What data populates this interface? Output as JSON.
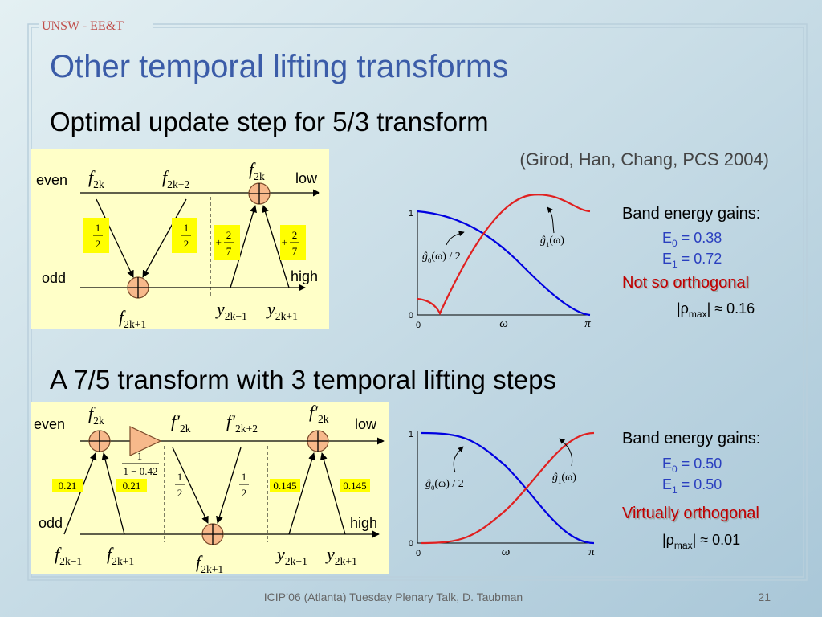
{
  "header": {
    "org": "UNSW - EE&T",
    "title": "Other temporal lifting transforms"
  },
  "sections": [
    {
      "heading": "Optimal update step for 5/3 transform",
      "citation": "(Girod, Han, Chang, PCS 2004)",
      "diagram": {
        "ports": [
          "even",
          "odd",
          "low",
          "high"
        ],
        "signals": [
          {
            "base": "f",
            "sub": "2k"
          },
          {
            "base": "f",
            "sub": "2k+2"
          },
          {
            "base": "f",
            "sub": "2k"
          },
          {
            "base": "f",
            "sub": "2k+1"
          },
          {
            "base": "y",
            "sub": "2k−1"
          },
          {
            "base": "y",
            "sub": "2k+1"
          }
        ],
        "weights": [
          {
            "sign": "−",
            "num": "1",
            "den": "2"
          },
          {
            "sign": "−",
            "num": "1",
            "den": "2"
          },
          {
            "sign": "+",
            "num": "2",
            "den": "7"
          },
          {
            "sign": "+",
            "num": "2",
            "den": "7"
          }
        ]
      },
      "plot": {
        "y_ticks": [
          "1",
          "0"
        ],
        "x_ticks": [
          "0",
          "π"
        ],
        "x_label": "ω",
        "curves": [
          {
            "base": "ĝ",
            "sub": "0",
            "post": "(ω) / 2"
          },
          {
            "base": "ĝ",
            "sub": "1",
            "post": "(ω)"
          }
        ]
      },
      "gains": {
        "title": "Band energy gains:",
        "bands": [
          {
            "symbol": "E",
            "sub": "0",
            "value": " = 0.38"
          },
          {
            "symbol": "E",
            "sub": "1",
            "value": " = 0.72"
          }
        ],
        "verdict": "Not so orthogonal",
        "rho": {
          "pre": "|ρ",
          "sub": "max",
          "post": "| ≈ 0.16"
        }
      }
    },
    {
      "heading": "A 7/5 transform with 3 temporal lifting steps",
      "diagram": {
        "ports": [
          "even",
          "odd",
          "low",
          "high"
        ],
        "signals": [
          {
            "base": "f",
            "sub": "2k"
          },
          {
            "base": "f′",
            "sub": "2k"
          },
          {
            "base": "f′",
            "sub": "2k+2"
          },
          {
            "base": "f′",
            "sub": "2k"
          },
          {
            "base": "f",
            "sub": "2k−1"
          },
          {
            "base": "f",
            "sub": "2k+1"
          },
          {
            "base": "f",
            "sub": "2k+1"
          },
          {
            "base": "y",
            "sub": "2k−1"
          },
          {
            "base": "y",
            "sub": "2k+1"
          }
        ],
        "gain": {
          "num": "1",
          "den": "1 − 0.42"
        },
        "weights": [
          {
            "text": "0.21"
          },
          {
            "text": "0.21"
          },
          {
            "sign": "−",
            "num": "1",
            "den": "2"
          },
          {
            "sign": "−",
            "num": "1",
            "den": "2"
          },
          {
            "text": "0.145"
          },
          {
            "text": "0.145"
          }
        ]
      },
      "plot": {
        "y_ticks": [
          "1",
          "0"
        ],
        "x_ticks": [
          "0",
          "π"
        ],
        "x_label": "ω",
        "curves": [
          {
            "base": "ĝ",
            "sub": "0",
            "post": "(ω) / 2"
          },
          {
            "base": "ĝ",
            "sub": "1",
            "post": "(ω)"
          }
        ]
      },
      "gains": {
        "title": "Band energy gains:",
        "bands": [
          {
            "symbol": "E",
            "sub": "0",
            "value": " = 0.50"
          },
          {
            "symbol": "E",
            "sub": "1",
            "value": " = 0.50"
          }
        ],
        "verdict": "Virtually orthogonal",
        "rho": {
          "pre": "|ρ",
          "sub": "max",
          "post": "| ≈ 0.01"
        }
      }
    }
  ],
  "footer": {
    "talk": "ICIP’06 (Atlanta) Tuesday Plenary Talk, D. Taubman",
    "page": "21"
  }
}
